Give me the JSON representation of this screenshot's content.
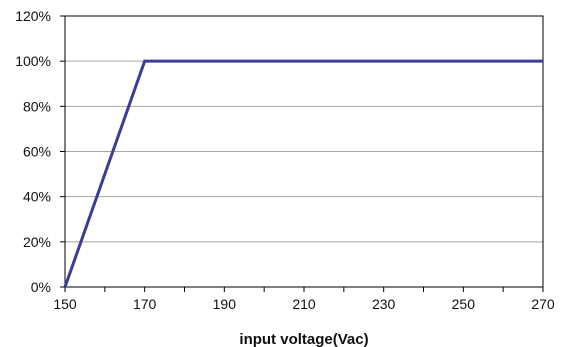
{
  "chart_data": {
    "type": "line",
    "title": "",
    "xlabel": "input voltage(Vac)",
    "ylabel": "",
    "xlim": [
      150,
      270
    ],
    "ylim": [
      0,
      120
    ],
    "x_ticks": [
      150,
      170,
      190,
      210,
      230,
      250,
      270
    ],
    "x_tick_labels": [
      "150",
      "170",
      "190",
      "210",
      "230",
      "250",
      "270"
    ],
    "y_ticks": [
      0,
      20,
      40,
      60,
      80,
      100,
      120
    ],
    "y_tick_labels": [
      "0%",
      "20%",
      "40%",
      "60%",
      "80%",
      "100%",
      "120%"
    ],
    "grid": "horizontal",
    "legend": "none",
    "series": [
      {
        "x": [
          150,
          170,
          270
        ],
        "y": [
          0,
          100,
          100
        ]
      }
    ]
  },
  "colors": {
    "line": "#3c3c96",
    "grid": "#a6a6a6",
    "frame": "#000000"
  }
}
